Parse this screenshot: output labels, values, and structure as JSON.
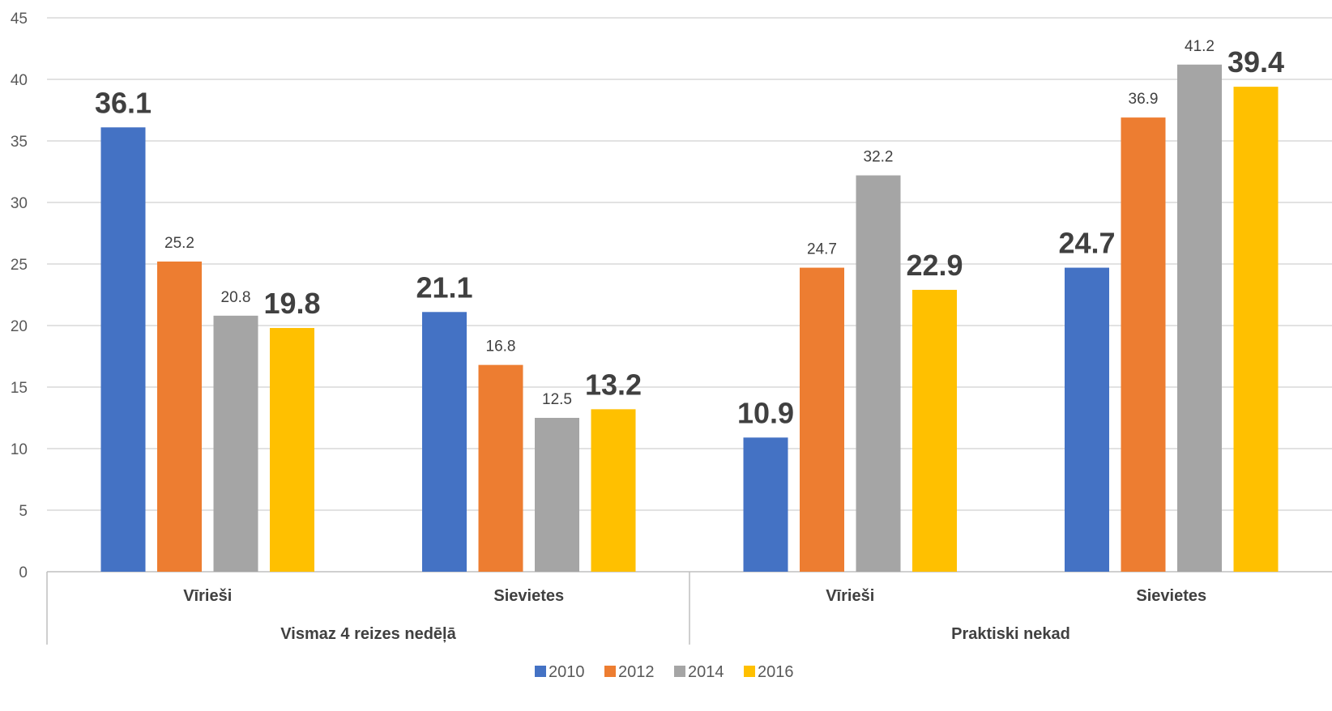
{
  "chart_data": {
    "type": "bar",
    "ylim": [
      0,
      45
    ],
    "yticks": [
      0,
      5,
      10,
      15,
      20,
      25,
      30,
      35,
      40,
      45
    ],
    "grid": true,
    "legend_position": "bottom",
    "groups": [
      {
        "label": "Vismaz 4 reizes nedēļā",
        "categories": [
          "Vīrieši",
          "Sievietes"
        ]
      },
      {
        "label": "Praktiski nekad",
        "categories": [
          "Vīrieši",
          "Sievietes"
        ]
      }
    ],
    "categories": [
      "Vīrieši",
      "Sievietes",
      "Vīrieši",
      "Sievietes"
    ],
    "series": [
      {
        "name": "2010",
        "color": "#4472C4",
        "values": [
          36.1,
          21.1,
          10.9,
          24.7
        ]
      },
      {
        "name": "2012",
        "color": "#ED7D31",
        "values": [
          25.2,
          16.8,
          24.7,
          36.9
        ]
      },
      {
        "name": "2014",
        "color": "#A5A5A5",
        "values": [
          20.8,
          12.5,
          32.2,
          41.2
        ]
      },
      {
        "name": "2016",
        "color": "#FFC000",
        "values": [
          19.8,
          13.2,
          22.9,
          39.4
        ]
      }
    ],
    "emphasized_labels": [
      [
        true,
        false,
        false,
        true
      ],
      [
        true,
        false,
        false,
        true
      ],
      [
        true,
        false,
        false,
        true
      ],
      [
        true,
        false,
        false,
        true
      ]
    ]
  }
}
